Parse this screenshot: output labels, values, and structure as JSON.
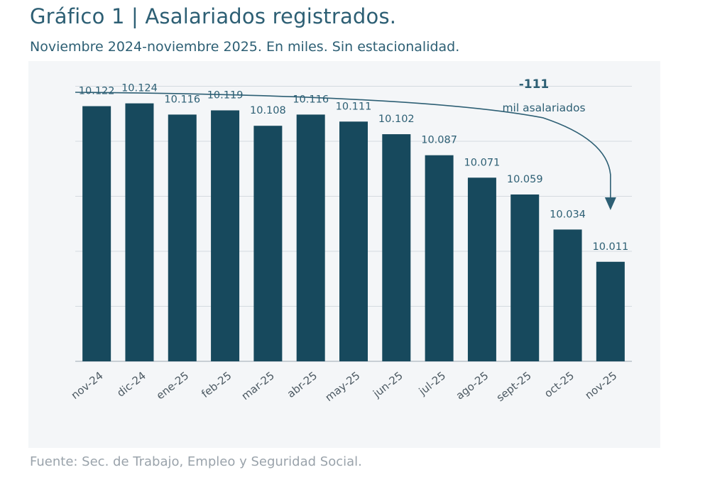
{
  "title": "Gráfico 1 | Asalariados registrados.",
  "subtitle": "Noviembre 2024-noviembre 2025. En miles. Sin estacionalidad.",
  "source": "Fuente: Sec. de Trabajo, Empleo y Seguridad Social.",
  "colors": {
    "bar": "#17495d",
    "label": "#2d5f74",
    "grid": "#d4dadf",
    "panel": "#f4f6f8",
    "arrow": "#2d5f74"
  },
  "annotation": {
    "value": "-111",
    "text": "mil asalariados"
  },
  "chart_data": {
    "type": "bar",
    "categories": [
      "nov-24",
      "dic-24",
      "ene-25",
      "feb-25",
      "mar-25",
      "abr-25",
      "may-25",
      "jun-25",
      "jul-25",
      "ago-25",
      "sept-25",
      "oct-25",
      "nov-25"
    ],
    "values": [
      10122,
      10124,
      10116,
      10119,
      10108,
      10116,
      10111,
      10102,
      10087,
      10071,
      10059,
      10034,
      10011
    ],
    "value_labels": [
      "10.122",
      "10.124",
      "10.116",
      "10.119",
      "10.108",
      "10.116",
      "10.111",
      "10.102",
      "10.087",
      "10.071",
      "10.059",
      "10.034",
      "10.011"
    ],
    "ylim": [
      9940,
      10140
    ],
    "grid": true
  }
}
